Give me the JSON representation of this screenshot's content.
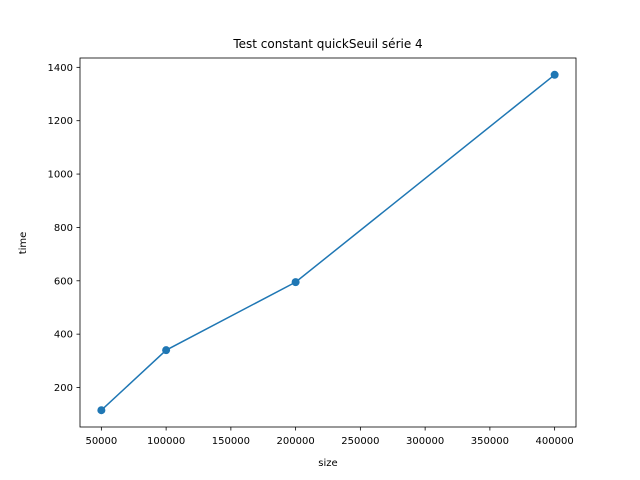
{
  "chart_data": {
    "type": "line",
    "title": "Test constant quickSeuil série 4",
    "xlabel": "size",
    "ylabel": "time",
    "x": [
      50000,
      100000,
      200000,
      400000
    ],
    "series": [
      {
        "values": [
          115,
          340,
          595,
          1372
        ],
        "color": "#1f77b4",
        "marker": "circle"
      }
    ],
    "xlim": [
      33500,
      416500
    ],
    "ylim": [
      52,
      1435
    ],
    "xticks": [
      50000,
      100000,
      150000,
      200000,
      250000,
      300000,
      350000,
      400000
    ],
    "yticks": [
      200,
      400,
      600,
      800,
      1000,
      1200,
      1400
    ],
    "grid": false
  }
}
